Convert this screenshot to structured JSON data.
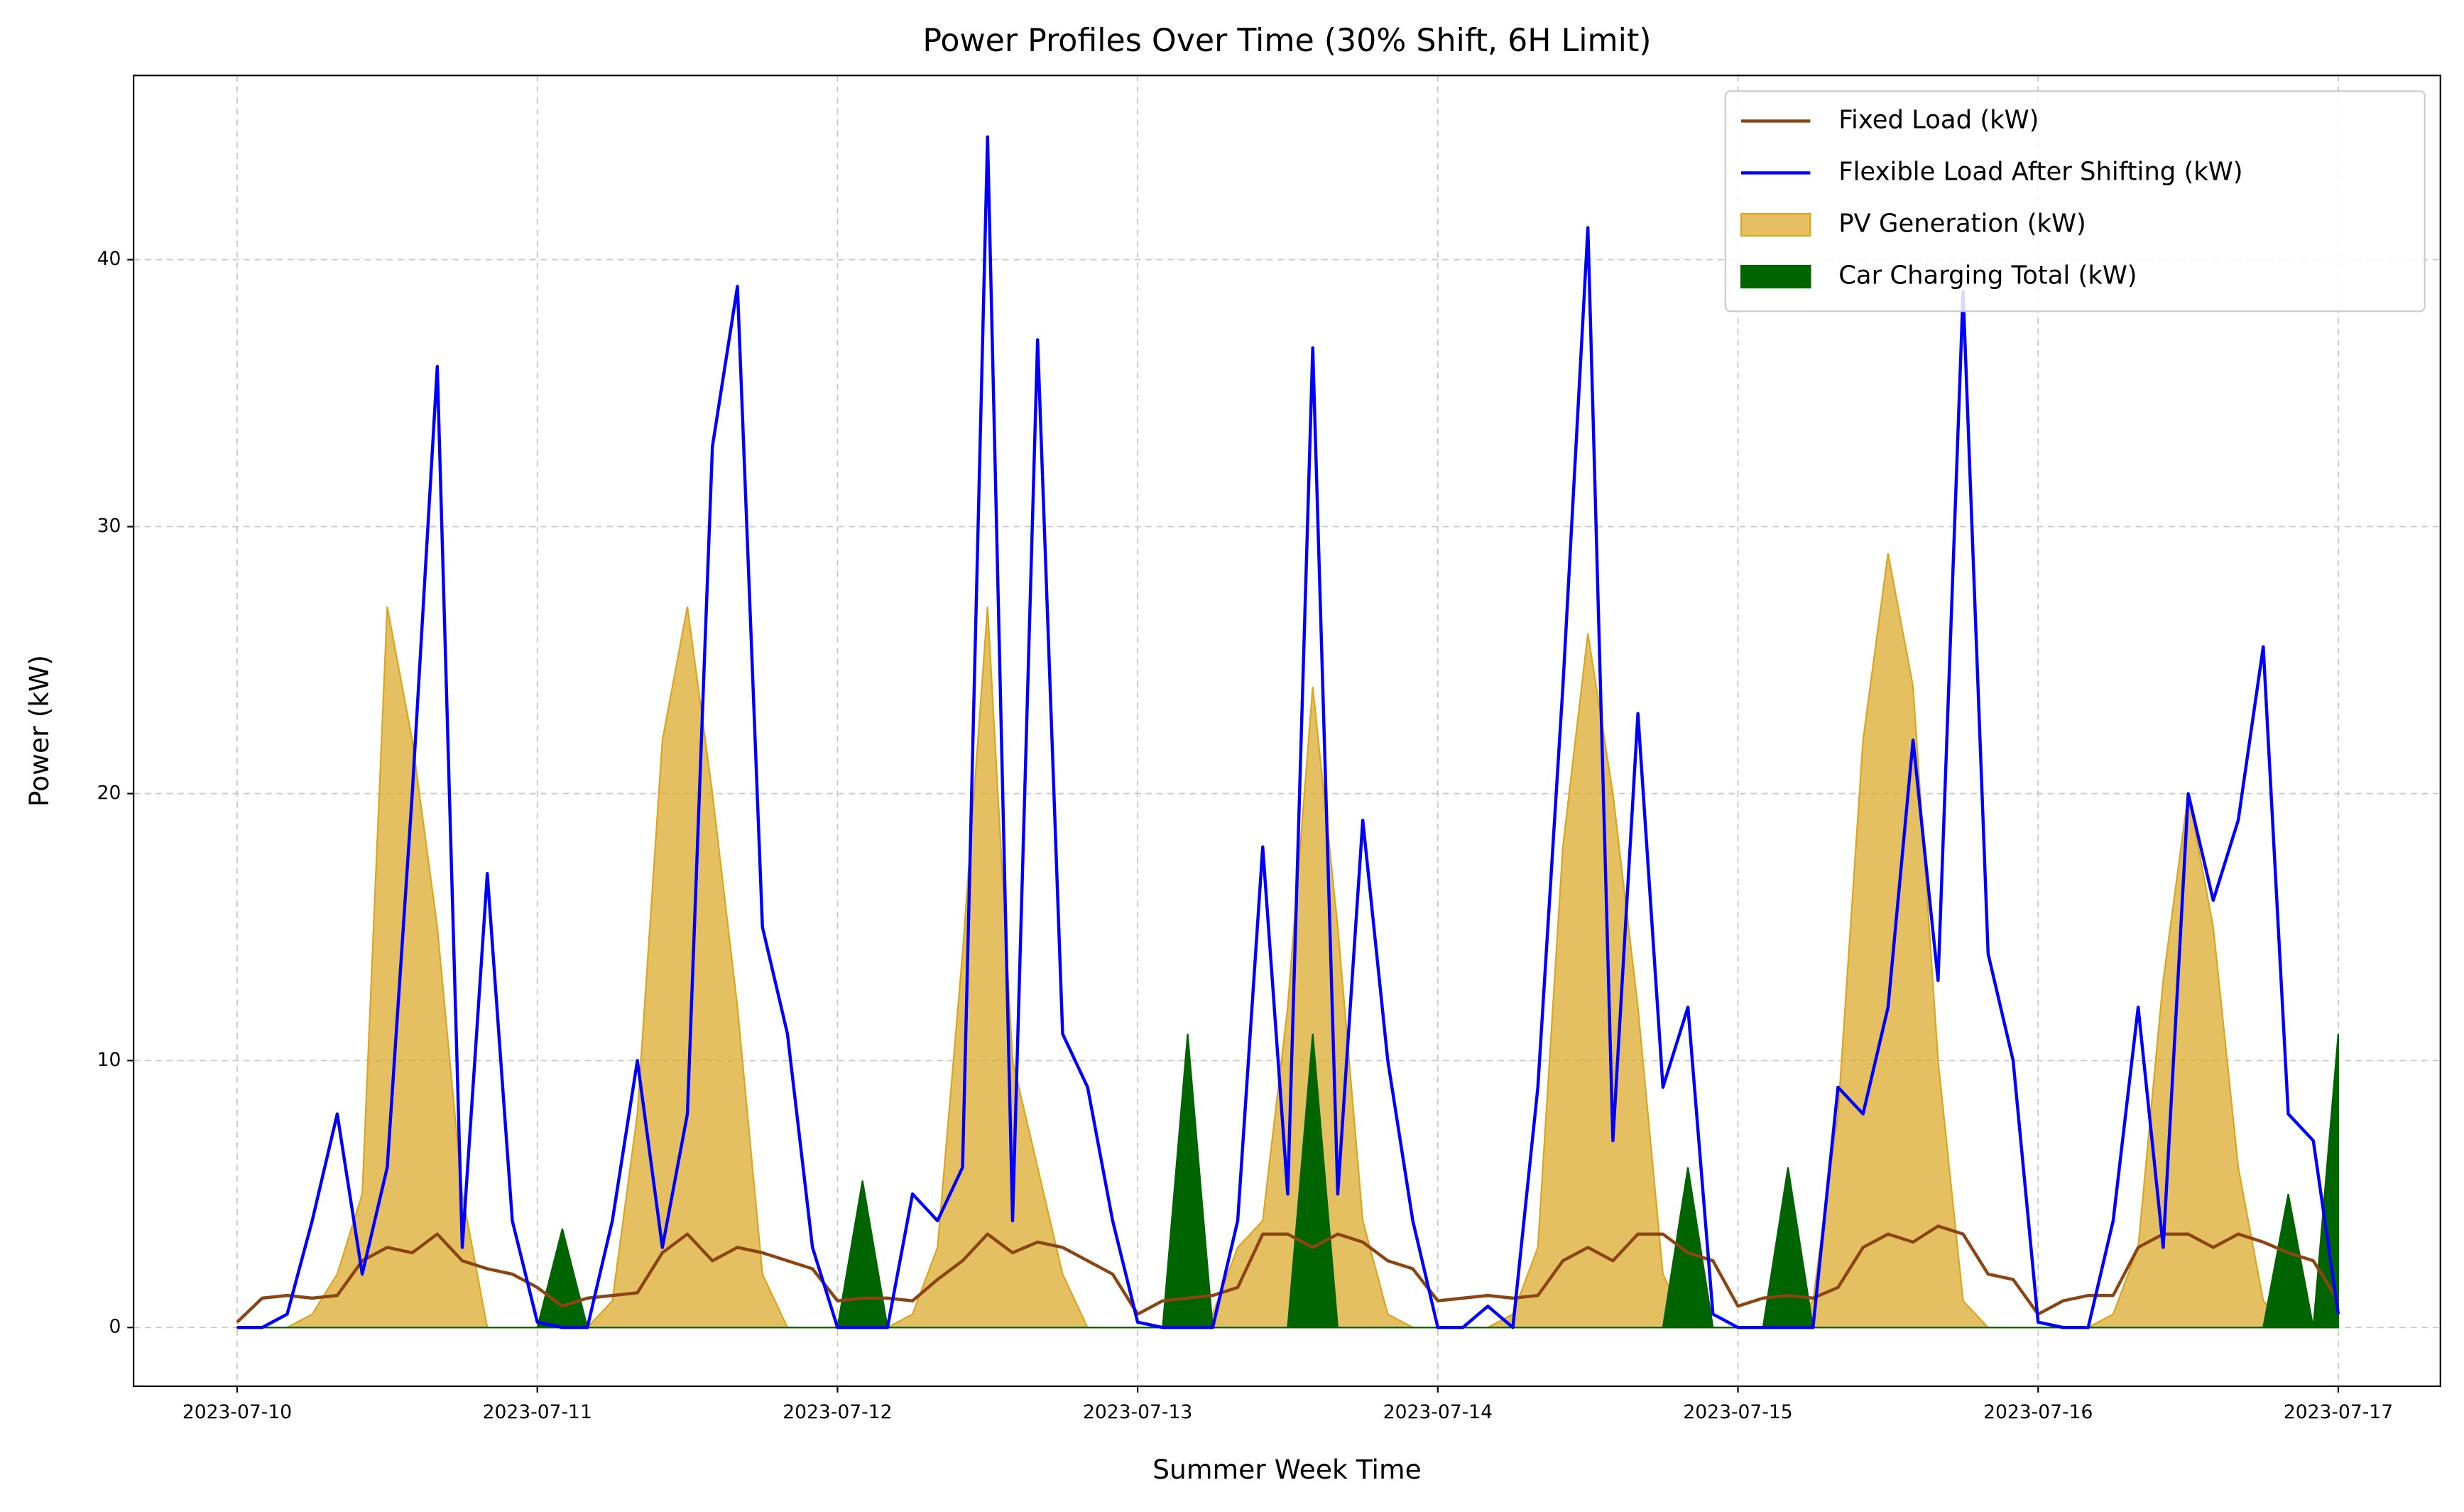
{
  "chart_data": {
    "type": "line",
    "title": "Power Profiles Over Time (30% Shift, 6H Limit)",
    "xlabel": "Summer Week Time",
    "ylabel": "Power (kW)",
    "x": [
      "2023-07-10 00:00",
      "2023-07-10 02:00",
      "2023-07-10 04:00",
      "2023-07-10 06:00",
      "2023-07-10 08:00",
      "2023-07-10 10:00",
      "2023-07-10 12:00",
      "2023-07-10 14:00",
      "2023-07-10 16:00",
      "2023-07-10 18:00",
      "2023-07-10 20:00",
      "2023-07-10 22:00",
      "2023-07-11 00:00",
      "2023-07-11 02:00",
      "2023-07-11 04:00",
      "2023-07-11 06:00",
      "2023-07-11 08:00",
      "2023-07-11 10:00",
      "2023-07-11 12:00",
      "2023-07-11 14:00",
      "2023-07-11 16:00",
      "2023-07-11 18:00",
      "2023-07-11 20:00",
      "2023-07-11 22:00",
      "2023-07-12 00:00",
      "2023-07-12 02:00",
      "2023-07-12 04:00",
      "2023-07-12 06:00",
      "2023-07-12 08:00",
      "2023-07-12 10:00",
      "2023-07-12 12:00",
      "2023-07-12 14:00",
      "2023-07-12 16:00",
      "2023-07-12 18:00",
      "2023-07-12 20:00",
      "2023-07-12 22:00",
      "2023-07-13 00:00",
      "2023-07-13 02:00",
      "2023-07-13 04:00",
      "2023-07-13 06:00",
      "2023-07-13 08:00",
      "2023-07-13 10:00",
      "2023-07-13 12:00",
      "2023-07-13 14:00",
      "2023-07-13 16:00",
      "2023-07-13 18:00",
      "2023-07-13 20:00",
      "2023-07-13 22:00",
      "2023-07-14 00:00",
      "2023-07-14 02:00",
      "2023-07-14 04:00",
      "2023-07-14 06:00",
      "2023-07-14 08:00",
      "2023-07-14 10:00",
      "2023-07-14 12:00",
      "2023-07-14 14:00",
      "2023-07-14 16:00",
      "2023-07-14 18:00",
      "2023-07-14 20:00",
      "2023-07-14 22:00",
      "2023-07-15 00:00",
      "2023-07-15 02:00",
      "2023-07-15 04:00",
      "2023-07-15 06:00",
      "2023-07-15 08:00",
      "2023-07-15 10:00",
      "2023-07-15 12:00",
      "2023-07-15 14:00",
      "2023-07-15 16:00",
      "2023-07-15 18:00",
      "2023-07-15 20:00",
      "2023-07-15 22:00",
      "2023-07-16 00:00",
      "2023-07-16 02:00",
      "2023-07-16 04:00",
      "2023-07-16 06:00",
      "2023-07-16 08:00",
      "2023-07-16 10:00",
      "2023-07-16 12:00",
      "2023-07-16 14:00",
      "2023-07-16 16:00",
      "2023-07-16 18:00",
      "2023-07-16 20:00",
      "2023-07-16 22:00",
      "2023-07-17 00:00"
    ],
    "series": [
      {
        "name": "Fixed Load (kW)",
        "kind": "line",
        "color": "#8b4513",
        "values": [
          0.2,
          1.1,
          1.2,
          1.1,
          1.2,
          2.5,
          3.0,
          2.8,
          3.5,
          2.5,
          2.2,
          2.0,
          1.5,
          0.8,
          1.1,
          1.2,
          1.3,
          2.8,
          3.5,
          2.5,
          3.0,
          2.8,
          2.5,
          2.2,
          1.0,
          1.1,
          1.1,
          1.0,
          1.8,
          2.5,
          3.5,
          2.8,
          3.2,
          3.0,
          2.5,
          2.0,
          0.5,
          1.0,
          1.1,
          1.2,
          1.5,
          3.5,
          3.5,
          3.0,
          3.5,
          3.2,
          2.5,
          2.2,
          1.0,
          1.1,
          1.2,
          1.1,
          1.2,
          2.5,
          3.0,
          2.5,
          3.5,
          3.5,
          2.8,
          2.5,
          0.8,
          1.1,
          1.2,
          1.1,
          1.5,
          3.0,
          3.5,
          3.2,
          3.8,
          3.5,
          2.0,
          1.8,
          0.5,
          1.0,
          1.2,
          1.2,
          3.0,
          3.5,
          3.5,
          3.0,
          3.5,
          3.2,
          2.8,
          2.5,
          1.0
        ]
      },
      {
        "name": "Flexible Load After Shifting (kW)",
        "kind": "line",
        "color": "#0000ff",
        "values": [
          0,
          0,
          0.5,
          4,
          8,
          2,
          6,
          20,
          36,
          3,
          17,
          4,
          0.2,
          0,
          0,
          4,
          10,
          3,
          8,
          33,
          39,
          15,
          11,
          3,
          0,
          0,
          0,
          5,
          4,
          6,
          44.6,
          4,
          37,
          11,
          9,
          4,
          0.2,
          0,
          0,
          0,
          4,
          18,
          5,
          36.7,
          5,
          19,
          10,
          4,
          0,
          0,
          0.8,
          0,
          9,
          24,
          41.2,
          7,
          23,
          9,
          12,
          0.5,
          0,
          0,
          0,
          0,
          9,
          8,
          12,
          22,
          13,
          38.8,
          14,
          10,
          0.2,
          0,
          0,
          4,
          12,
          3,
          20,
          16,
          19,
          25.5,
          8,
          7,
          0.5
        ]
      },
      {
        "name": "PV Generation (kW)",
        "kind": "area",
        "color": "#daa520",
        "values": [
          0,
          0,
          0,
          0.5,
          2,
          5,
          27,
          22,
          15,
          5,
          0,
          0,
          0,
          0,
          0,
          1,
          8,
          22,
          27,
          20,
          12,
          2,
          0,
          0,
          0,
          0,
          0,
          0.5,
          3,
          14,
          27,
          10,
          6,
          2,
          0,
          0,
          0,
          0,
          0,
          0.5,
          3,
          4,
          12,
          24,
          15,
          4,
          0.5,
          0,
          0,
          0,
          0,
          0.5,
          3,
          18,
          26,
          20,
          12,
          2,
          0,
          0,
          0,
          0,
          0,
          1,
          8,
          22,
          29,
          24,
          10,
          1,
          0,
          0,
          0,
          0,
          0,
          0.5,
          3,
          13,
          20,
          15,
          6,
          1,
          0,
          0,
          0
        ]
      },
      {
        "name": "Car Charging Total (kW)",
        "kind": "area",
        "color": "#006400",
        "values": [
          0,
          0,
          0,
          0,
          0,
          0,
          0,
          0,
          0,
          0,
          0,
          0,
          0,
          3.7,
          0,
          0,
          0,
          0,
          0,
          0,
          0,
          0,
          0,
          0,
          0,
          5.5,
          0,
          0,
          0,
          0,
          0,
          0,
          0,
          0,
          0,
          0,
          0,
          0,
          11,
          0,
          0,
          0,
          0,
          11,
          0,
          0,
          0,
          0,
          0,
          0,
          0,
          0,
          0,
          0,
          0,
          0,
          0,
          0,
          6,
          0,
          0,
          0,
          6,
          0,
          0,
          0,
          0,
          0,
          0,
          0,
          0,
          0,
          0,
          0,
          0,
          0,
          0,
          0,
          0,
          0,
          0,
          0,
          5,
          0,
          11
        ]
      }
    ],
    "xlim": [
      "2023-07-09 15:43",
      "2023-07-17 08:10"
    ],
    "xticks": [
      "2023-07-10",
      "2023-07-11",
      "2023-07-12",
      "2023-07-13",
      "2023-07-14",
      "2023-07-15",
      "2023-07-16",
      "2023-07-17"
    ],
    "ylim": [
      -2.2,
      46.9
    ],
    "yticks": [
      0,
      10,
      20,
      30,
      40
    ],
    "grid": true,
    "legend": "upper right"
  }
}
